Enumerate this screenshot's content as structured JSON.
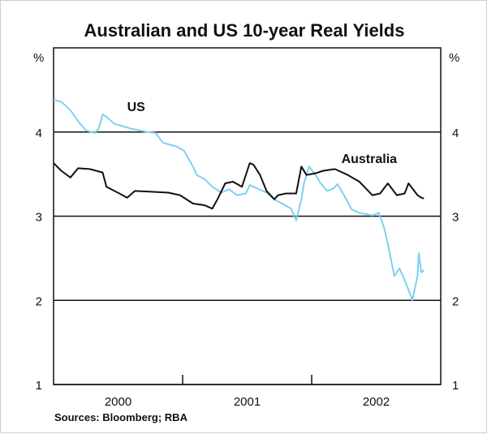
{
  "chart_data": {
    "type": "line",
    "title": "Australian and US 10-year Real Yields",
    "ylabel_left": "%",
    "ylabel_right": "%",
    "ylim": [
      1,
      5
    ],
    "yticks": [
      1,
      2,
      3,
      4
    ],
    "xlim": [
      2000,
      2003
    ],
    "xtick_labels": [
      {
        "label": "2000",
        "x": 2000.5
      },
      {
        "label": "2001",
        "x": 2001.5
      },
      {
        "label": "2002",
        "x": 2002.5
      }
    ],
    "xtick_marks": [
      2001,
      2002
    ],
    "grid": true,
    "source": "Sources: Bloomberg; RBA",
    "series": [
      {
        "name": "US",
        "color": "#7fd0f0",
        "label_at": [
          2000.57,
          4.25
        ],
        "points": [
          [
            2000.0,
            4.38
          ],
          [
            2000.06,
            4.36
          ],
          [
            2000.13,
            4.26
          ],
          [
            2000.19,
            4.13
          ],
          [
            2000.25,
            4.02
          ],
          [
            2000.32,
            3.99
          ],
          [
            2000.35,
            4.04
          ],
          [
            2000.38,
            4.21
          ],
          [
            2000.41,
            4.18
          ],
          [
            2000.47,
            4.1
          ],
          [
            2000.6,
            4.04
          ],
          [
            2000.73,
            4.0
          ],
          [
            2000.79,
            3.99
          ],
          [
            2000.85,
            3.87
          ],
          [
            2000.95,
            3.83
          ],
          [
            2001.01,
            3.78
          ],
          [
            2001.08,
            3.59
          ],
          [
            2001.11,
            3.49
          ],
          [
            2001.17,
            3.44
          ],
          [
            2001.23,
            3.35
          ],
          [
            2001.3,
            3.28
          ],
          [
            2001.36,
            3.32
          ],
          [
            2001.42,
            3.25
          ],
          [
            2001.49,
            3.27
          ],
          [
            2001.52,
            3.37
          ],
          [
            2001.58,
            3.33
          ],
          [
            2001.65,
            3.28
          ],
          [
            2001.71,
            3.2
          ],
          [
            2001.77,
            3.15
          ],
          [
            2001.84,
            3.09
          ],
          [
            2001.88,
            2.95
          ],
          [
            2001.92,
            3.2
          ],
          [
            2001.94,
            3.39
          ],
          [
            2001.98,
            3.59
          ],
          [
            2002.03,
            3.49
          ],
          [
            2002.07,
            3.39
          ],
          [
            2002.12,
            3.3
          ],
          [
            2002.17,
            3.33
          ],
          [
            2002.2,
            3.38
          ],
          [
            2002.25,
            3.25
          ],
          [
            2002.31,
            3.08
          ],
          [
            2002.37,
            3.04
          ],
          [
            2002.47,
            3.01
          ],
          [
            2002.52,
            3.04
          ],
          [
            2002.56,
            2.87
          ],
          [
            2002.59,
            2.67
          ],
          [
            2002.64,
            2.29
          ],
          [
            2002.68,
            2.38
          ],
          [
            2002.72,
            2.24
          ],
          [
            2002.77,
            2.05
          ],
          [
            2002.78,
            2.0
          ],
          [
            2002.82,
            2.29
          ],
          [
            2002.83,
            2.56
          ],
          [
            2002.85,
            2.33
          ],
          [
            2002.87,
            2.36
          ]
        ]
      },
      {
        "name": "Australia",
        "color": "#111111",
        "label_at": [
          2002.23,
          3.63
        ],
        "points": [
          [
            2000.0,
            3.63
          ],
          [
            2000.06,
            3.54
          ],
          [
            2000.13,
            3.46
          ],
          [
            2000.19,
            3.57
          ],
          [
            2000.28,
            3.56
          ],
          [
            2000.38,
            3.52
          ],
          [
            2000.41,
            3.35
          ],
          [
            2000.51,
            3.27
          ],
          [
            2000.57,
            3.22
          ],
          [
            2000.63,
            3.3
          ],
          [
            2000.76,
            3.29
          ],
          [
            2000.89,
            3.28
          ],
          [
            2000.98,
            3.25
          ],
          [
            2001.08,
            3.15
          ],
          [
            2001.17,
            3.13
          ],
          [
            2001.23,
            3.09
          ],
          [
            2001.27,
            3.2
          ],
          [
            2001.33,
            3.39
          ],
          [
            2001.39,
            3.41
          ],
          [
            2001.46,
            3.35
          ],
          [
            2001.52,
            3.63
          ],
          [
            2001.55,
            3.61
          ],
          [
            2001.6,
            3.49
          ],
          [
            2001.65,
            3.3
          ],
          [
            2001.71,
            3.2
          ],
          [
            2001.74,
            3.25
          ],
          [
            2001.8,
            3.27
          ],
          [
            2001.88,
            3.27
          ],
          [
            2001.92,
            3.59
          ],
          [
            2001.96,
            3.49
          ],
          [
            2002.03,
            3.51
          ],
          [
            2002.09,
            3.54
          ],
          [
            2002.18,
            3.56
          ],
          [
            2002.28,
            3.49
          ],
          [
            2002.37,
            3.41
          ],
          [
            2002.47,
            3.25
          ],
          [
            2002.53,
            3.27
          ],
          [
            2002.59,
            3.39
          ],
          [
            2002.66,
            3.25
          ],
          [
            2002.72,
            3.27
          ],
          [
            2002.75,
            3.39
          ],
          [
            2002.82,
            3.25
          ],
          [
            2002.85,
            3.22
          ],
          [
            2002.87,
            3.21
          ]
        ]
      }
    ]
  }
}
